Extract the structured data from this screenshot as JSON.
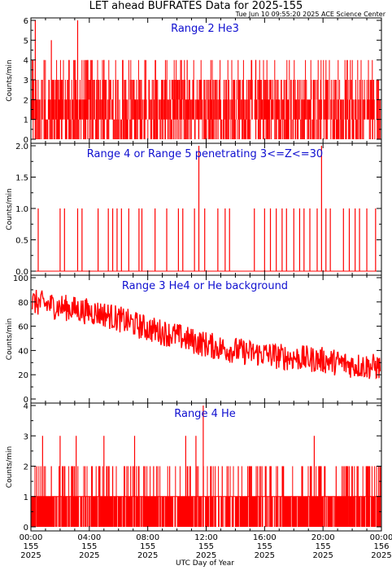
{
  "title": "LET ahead BUFRATES Data for 2025-155",
  "timestamp": "Tue Jun 10 09:55:20 2025 ACE Science Center",
  "xlabel": "UTC Day of Year",
  "colors": {
    "series": "#ff0000",
    "panel_title": "#1010d0",
    "axes": "#000000"
  },
  "x_ticks": [
    {
      "hours": 0,
      "time": "00:00",
      "doy": "155",
      "year": "2025"
    },
    {
      "hours": 4,
      "time": "04:00",
      "doy": "155",
      "year": "2025"
    },
    {
      "hours": 8,
      "time": "08:00",
      "doy": "155",
      "year": "2025"
    },
    {
      "hours": 12,
      "time": "12:00",
      "doy": "155",
      "year": "2025"
    },
    {
      "hours": 16,
      "time": "16:00",
      "doy": "155",
      "year": "2025"
    },
    {
      "hours": 20,
      "time": "20:00",
      "doy": "155",
      "year": "2025"
    },
    {
      "hours": 24,
      "time": "00:00",
      "doy": "156",
      "year": "2025"
    }
  ],
  "chart_data": [
    {
      "type": "line",
      "title": "Range 2 He3",
      "ylabel": "Counts/min",
      "ylim": [
        0,
        6
      ],
      "yticks": [
        0,
        1,
        2,
        3,
        4,
        5,
        6
      ],
      "ytick_labels": [
        "0",
        "1",
        "2",
        "3",
        "4",
        "5",
        "6"
      ],
      "x_unit": "hours since 2025-155 00:00 UTC",
      "series": [
        {
          "x": [
            0.3,
            0.9,
            1.4,
            2.1,
            2.6,
            3.2,
            3.9,
            4.5,
            5.0,
            5.8,
            6.3,
            7.1,
            7.8,
            8.4,
            9.2,
            10.0,
            10.7,
            11.5,
            12.3,
            13.0,
            13.9,
            14.6,
            15.4,
            16.2,
            17.0,
            17.8,
            18.6,
            19.4,
            20.2,
            21.0,
            21.8,
            22.6,
            23.4
          ],
          "values": [
            6,
            4,
            5,
            3,
            4,
            6,
            4,
            3,
            4,
            3,
            4,
            2,
            4,
            3,
            2,
            3,
            4,
            2,
            3,
            2,
            3,
            2,
            4,
            3,
            2,
            3,
            2,
            2,
            3,
            2,
            2,
            3,
            2
          ]
        }
      ]
    },
    {
      "type": "line",
      "title": "Range 4 or Range 5 penetrating 3<=Z<=30",
      "ylabel": "Counts/min",
      "ylim": [
        0,
        2
      ],
      "yticks": [
        0,
        0.5,
        1,
        1.5,
        2
      ],
      "ytick_labels": [
        "0.0",
        "0.5",
        "1.0",
        "1.5",
        "2.0"
      ],
      "x_unit": "hours since 2025-155 00:00 UTC",
      "series": [
        {
          "x": [
            0.5,
            2.0,
            2.3,
            3.2,
            3.5,
            4.6,
            5.3,
            5.6,
            5.9,
            6.2,
            6.7,
            7.4,
            7.6,
            8.5,
            9.3,
            10.1,
            10.4,
            11.2,
            11.5,
            11.9,
            12.8,
            13.3,
            13.6,
            15.3,
            16.0,
            16.4,
            16.8,
            17.2,
            17.5,
            18.0,
            18.4,
            18.7,
            19.1,
            19.6,
            19.9,
            20.2,
            20.5,
            21.4,
            21.8,
            22.2,
            22.5,
            23.0,
            23.6
          ],
          "values": [
            1,
            1,
            1,
            1,
            1,
            1,
            1,
            1,
            1,
            1,
            1,
            1,
            1,
            1,
            1,
            1,
            1,
            1,
            2,
            1,
            1,
            1,
            1,
            1,
            1,
            1,
            1,
            1,
            1,
            1,
            1,
            1,
            1,
            1,
            2,
            1,
            1,
            1,
            1,
            1,
            1,
            1,
            1
          ]
        }
      ]
    },
    {
      "type": "line",
      "title": "Range 3 He4 or He background",
      "ylabel": "Counts/min",
      "ylim": [
        0,
        100
      ],
      "yticks": [
        0,
        20,
        40,
        60,
        80,
        100
      ],
      "ytick_labels": [
        "0",
        "20",
        "40",
        "60",
        "80",
        "100"
      ],
      "x_unit": "hours since 2025-155 00:00 UTC",
      "series": [
        {
          "x": [
            0,
            1,
            2,
            3,
            4,
            5,
            6,
            7,
            8,
            9,
            10,
            11,
            12,
            13,
            14,
            15,
            16,
            17,
            18,
            19,
            20,
            21,
            22,
            23,
            24
          ],
          "values": [
            80,
            78,
            76,
            74,
            72,
            70,
            66,
            62,
            58,
            55,
            52,
            48,
            45,
            42,
            40,
            38,
            37,
            35,
            34,
            33,
            32,
            30,
            28,
            27,
            26
          ]
        }
      ]
    },
    {
      "type": "line",
      "title": "Range 4 He",
      "ylabel": "Counts/min",
      "ylim": [
        0,
        4
      ],
      "yticks": [
        0,
        1,
        2,
        3,
        4
      ],
      "ytick_labels": [
        "0",
        "1",
        "2",
        "3",
        "4"
      ],
      "x_unit": "hours since 2025-155 00:00 UTC",
      "series": [
        {
          "x": [
            0.4,
            0.8,
            1.4,
            2.0,
            2.3,
            3.1,
            4.2,
            5.0,
            5.6,
            6.4,
            7.1,
            7.8,
            8.4,
            9.5,
            10.6,
            11.3,
            11.8,
            12.3,
            13.1,
            14.2,
            15.0,
            16.1,
            17.3,
            18.6,
            19.4,
            20.1,
            20.9,
            21.7,
            22.4,
            23.2
          ],
          "values": [
            2,
            3,
            2,
            3,
            2,
            3,
            2,
            3,
            2,
            2,
            3,
            2,
            2,
            2,
            3,
            3,
            4,
            2,
            2,
            2,
            2,
            2,
            2,
            2,
            3,
            2,
            2,
            2,
            2,
            2
          ]
        }
      ]
    }
  ]
}
